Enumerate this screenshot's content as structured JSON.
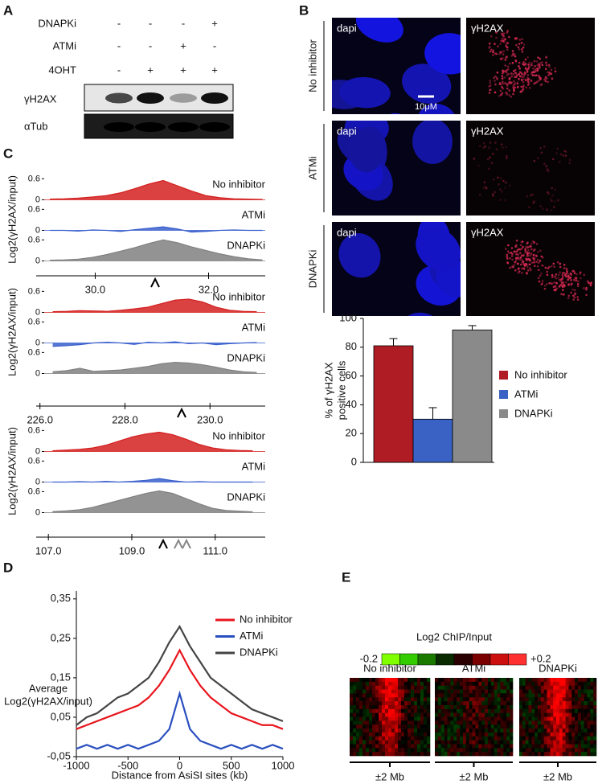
{
  "panel_labels": [
    "A",
    "B",
    "C",
    "D",
    "E"
  ],
  "blot": {
    "treatments": [
      {
        "name": "DNAPKi",
        "signs": [
          "-",
          "-",
          "-",
          "+"
        ]
      },
      {
        "name": "ATMi",
        "signs": [
          "-",
          "-",
          "+",
          "-"
        ]
      },
      {
        "name": "4OHT",
        "signs": [
          "-",
          "+",
          "+",
          "+"
        ]
      }
    ],
    "rows": [
      "γH2AX",
      "αTub"
    ]
  },
  "microscopy": {
    "rows": [
      "No inhibitor",
      "ATMi",
      "DNAPKi"
    ],
    "channels": [
      "dapi",
      "γH2AX"
    ],
    "scale_bar": "10μM"
  },
  "heatmaps": {
    "colorbar": {
      "title": "Log2 ChIP/Input",
      "lim": [
        -0.2,
        0.2
      ],
      "ticks": [
        {
          "value": -0.2,
          "label": "-0.2"
        },
        {
          "value": 0.2,
          "label": "+0.2"
        }
      ]
    },
    "titles": [
      "No inhibitor",
      "ATMi",
      "DNAPKi"
    ],
    "span": "±2 Mb"
  },
  "chart_data": [
    {
      "type": "area",
      "ylabel": "Log2(γH2AX/input)",
      "x": [
        29.2,
        29.45,
        29.7,
        29.95,
        30.2,
        30.45,
        30.7,
        30.95,
        31.2,
        31.45,
        31.7,
        31.95,
        32.2,
        32.45,
        32.7,
        32.95
      ],
      "xlim": [
        29.1,
        33.0
      ],
      "xticks": [
        {
          "value": 30,
          "label": "30.0"
        },
        {
          "value": 32,
          "label": "32.0"
        }
      ],
      "ylim": [
        -0.15,
        0.7
      ],
      "yticks": [
        0,
        0.6
      ],
      "series": [
        {
          "name": "No inhibitor",
          "color": "#d42020",
          "values": [
            0.02,
            0.03,
            0.05,
            0.08,
            0.12,
            0.2,
            0.32,
            0.45,
            0.55,
            0.4,
            0.25,
            0.12,
            0.06,
            0.03,
            0.02,
            0.01
          ]
        },
        {
          "name": "ATMi",
          "color": "#3a5fcd",
          "values": [
            0,
            0,
            -0.02,
            0.01,
            0,
            -0.03,
            0.02,
            0.06,
            0.1,
            0.04,
            -0.05,
            -0.03,
            0,
            0.01,
            0,
            0
          ]
        },
        {
          "name": "DNAPKi",
          "color": "#808080",
          "values": [
            0.02,
            0.03,
            0.05,
            0.1,
            0.18,
            0.28,
            0.38,
            0.5,
            0.6,
            0.52,
            0.4,
            0.3,
            0.2,
            0.12,
            0.06,
            0.03
          ]
        }
      ]
    },
    {
      "type": "area",
      "ylabel": "Log2(γH2AX/input)",
      "x": [
        226.3,
        226.62,
        226.94,
        227.26,
        227.58,
        227.9,
        228.22,
        228.54,
        228.86,
        229.18,
        229.5,
        229.82,
        230.14,
        230.46,
        230.78,
        231.1
      ],
      "xlim": [
        226.1,
        231.3
      ],
      "xticks": [
        {
          "value": 226,
          "label": "226.0"
        },
        {
          "value": 228,
          "label": "228.0"
        },
        {
          "value": 230,
          "label": "230.0"
        }
      ],
      "ylim": [
        -0.15,
        0.7
      ],
      "yticks": [
        0,
        0.6
      ],
      "series": [
        {
          "name": "No inhibitor",
          "color": "#d42020",
          "values": [
            0.02,
            0.03,
            0.05,
            0.04,
            0.03,
            0.06,
            0.1,
            0.15,
            0.25,
            0.35,
            0.38,
            0.3,
            0.15,
            0.06,
            0.03,
            0.02
          ]
        },
        {
          "name": "ATMi",
          "color": "#3a5fcd",
          "values": [
            -0.1,
            -0.08,
            -0.05,
            0,
            0.02,
            0,
            -0.04,
            0.02,
            0,
            0.03,
            -0.02,
            0,
            -0.05,
            -0.02,
            0,
            0.01
          ]
        },
        {
          "name": "DNAPKi",
          "color": "#808080",
          "values": [
            0.05,
            0.08,
            0.15,
            0.06,
            0.08,
            0.1,
            0.15,
            0.2,
            0.28,
            0.32,
            0.3,
            0.25,
            0.18,
            0.1,
            0.05,
            0.03
          ]
        }
      ]
    },
    {
      "type": "area",
      "ylabel": "Log2(γH2AX/input)",
      "x": [
        107.1,
        107.42,
        107.74,
        108.06,
        108.38,
        108.7,
        109.02,
        109.34,
        109.66,
        109.98,
        110.3,
        110.62,
        110.94,
        111.26,
        111.58,
        111.9
      ],
      "xlim": [
        106.9,
        112.2
      ],
      "xticks": [
        {
          "value": 107,
          "label": "107.0"
        },
        {
          "value": 109,
          "label": "109.0"
        },
        {
          "value": 111,
          "label": "111.0"
        }
      ],
      "ylim": [
        -0.15,
        0.7
      ],
      "yticks": [
        0,
        0.6
      ],
      "series": [
        {
          "name": "No inhibitor",
          "color": "#d42020",
          "values": [
            0.02,
            0.04,
            0.06,
            0.1,
            0.18,
            0.3,
            0.42,
            0.5,
            0.55,
            0.48,
            0.35,
            0.2,
            0.1,
            0.05,
            0.03,
            0.02
          ]
        },
        {
          "name": "ATMi",
          "color": "#3a5fcd",
          "values": [
            0,
            0,
            0.01,
            0,
            0.02,
            0,
            0.02,
            0.05,
            0.1,
            0.04,
            0,
            0.01,
            0,
            0,
            0,
            0
          ]
        },
        {
          "name": "DNAPKi",
          "color": "#808080",
          "values": [
            0.03,
            0.05,
            0.08,
            0.15,
            0.25,
            0.35,
            0.45,
            0.55,
            0.62,
            0.55,
            0.4,
            0.25,
            0.12,
            0.06,
            0.04,
            0.02
          ]
        }
      ]
    },
    {
      "type": "bar",
      "ylabel": [
        "% of γH2AX",
        "positive cells"
      ],
      "categories": [
        "No inhibitor",
        "ATMi",
        "DNAPKi"
      ],
      "colors": [
        "#b01c24",
        "#3a62c4",
        "#8a8a8a"
      ],
      "values": [
        81,
        30,
        92
      ],
      "errors": [
        5,
        8,
        3
      ],
      "ylim": [
        0,
        100
      ],
      "yticks": [
        0,
        20,
        40,
        60,
        80,
        100
      ],
      "legend": "right"
    },
    {
      "type": "line",
      "ylabel": [
        "Average",
        "Log2(γH2AX/input)"
      ],
      "xlabel": "Distance from AsiSI sites (kb)",
      "x": [
        -1000,
        -900,
        -800,
        -700,
        -600,
        -500,
        -400,
        -300,
        -200,
        -100,
        0,
        100,
        200,
        300,
        400,
        500,
        600,
        700,
        800,
        900,
        1000
      ],
      "xlim": [
        -1000,
        1000
      ],
      "xticks": [
        -1000,
        -500,
        0,
        500,
        1000
      ],
      "ylim": [
        -0.05,
        0.37
      ],
      "yticks": [
        {
          "value": -0.05,
          "label": "-0,05"
        },
        {
          "value": 0.05,
          "label": "0,05"
        },
        {
          "value": 0.15,
          "label": "0,15"
        },
        {
          "value": 0.25,
          "label": "0,25"
        },
        {
          "value": 0.35,
          "label": "0,35"
        }
      ],
      "legend": "upper right",
      "series": [
        {
          "name": "No inhibitor",
          "color": "#e8141c",
          "values": [
            0.02,
            0.03,
            0.04,
            0.05,
            0.06,
            0.07,
            0.08,
            0.1,
            0.13,
            0.17,
            0.22,
            0.17,
            0.13,
            0.1,
            0.08,
            0.06,
            0.05,
            0.04,
            0.03,
            0.03,
            0.02
          ]
        },
        {
          "name": "ATMi",
          "color": "#2a4fc0",
          "values": [
            -0.03,
            -0.02,
            -0.03,
            -0.02,
            -0.03,
            -0.02,
            -0.03,
            -0.02,
            -0.01,
            0.02,
            0.11,
            0.02,
            -0.01,
            -0.02,
            -0.03,
            -0.02,
            -0.03,
            -0.02,
            -0.03,
            -0.02,
            -0.03
          ]
        },
        {
          "name": "DNAPKi",
          "color": "#444444",
          "values": [
            0.03,
            0.05,
            0.06,
            0.08,
            0.1,
            0.11,
            0.13,
            0.15,
            0.19,
            0.24,
            0.28,
            0.23,
            0.19,
            0.15,
            0.13,
            0.11,
            0.09,
            0.07,
            0.06,
            0.05,
            0.04
          ]
        }
      ]
    }
  ]
}
